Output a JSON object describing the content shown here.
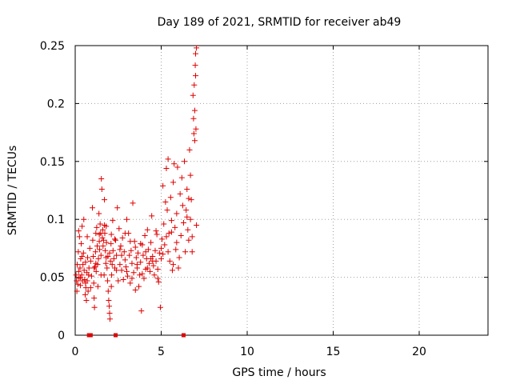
{
  "chart_data": {
    "type": "scatter",
    "title": "Day 189 of 2021, SRMTID for receiver ab49",
    "xlabel": "GPS time / hours",
    "ylabel": "SRMTID / TECUs",
    "xlim": [
      0,
      24
    ],
    "ylim": [
      0,
      0.25
    ],
    "xticks": [
      0,
      5,
      10,
      15,
      20
    ],
    "xtick_labels": [
      "0",
      "5",
      "10",
      "15",
      "20"
    ],
    "yticks": [
      0,
      0.05,
      0.1,
      0.15,
      0.2,
      0.25
    ],
    "ytick_labels": [
      "0",
      "0.05",
      "0.1",
      "0.15",
      "0.2",
      "0.25"
    ],
    "grid": true,
    "series": [
      {
        "name": "SRMTID",
        "color": "#e00000",
        "marker": "+",
        "points": [
          [
            0.05,
            0.052
          ],
          [
            0.08,
            0.047
          ],
          [
            0.12,
            0.061
          ],
          [
            0.15,
            0.044
          ],
          [
            0.18,
            0.072
          ],
          [
            0.2,
            0.055
          ],
          [
            0.22,
            0.049
          ],
          [
            0.25,
            0.085
          ],
          [
            0.28,
            0.058
          ],
          [
            0.3,
            0.043
          ],
          [
            0.32,
            0.066
          ],
          [
            0.35,
            0.079
          ],
          [
            0.38,
            0.052
          ],
          [
            0.4,
            0.094
          ],
          [
            0.42,
            0.047
          ],
          [
            0.45,
            0.061
          ],
          [
            0.48,
            0.071
          ],
          [
            0.5,
            0.1
          ],
          [
            0.52,
            0.056
          ],
          [
            0.55,
            0.048
          ],
          [
            0.58,
            0.035
          ],
          [
            0.6,
            0.063
          ],
          [
            0.62,
            0.041
          ],
          [
            0.65,
            0.03
          ],
          [
            0.68,
            0.054
          ],
          [
            0.7,
            0.047
          ],
          [
            0.72,
            0.067
          ],
          [
            0.75,
            0.038
          ],
          [
            0.78,
            0.052
          ],
          [
            0.8,
            0.058
          ],
          [
            0.85,
            0.075
          ],
          [
            0.9,
            0.064
          ],
          [
            0.95,
            0.051
          ],
          [
            1.0,
            0.11
          ],
          [
            1.02,
            0.082
          ],
          [
            1.05,
            0.068
          ],
          [
            1.08,
            0.045
          ],
          [
            1.1,
            0.032
          ],
          [
            1.12,
            0.024
          ],
          [
            1.15,
            0.059
          ],
          [
            1.18,
            0.072
          ],
          [
            1.2,
            0.088
          ],
          [
            1.22,
            0.055
          ],
          [
            1.25,
            0.093
          ],
          [
            1.28,
            0.077
          ],
          [
            1.3,
            0.061
          ],
          [
            1.32,
            0.042
          ],
          [
            1.35,
            0.066
          ],
          [
            1.38,
            0.105
          ],
          [
            1.4,
            0.081
          ],
          [
            1.42,
            0.074
          ],
          [
            1.45,
            0.096
          ],
          [
            1.48,
            0.088
          ],
          [
            1.5,
            0.069
          ],
          [
            1.52,
            0.135
          ],
          [
            1.55,
            0.126
          ],
          [
            1.58,
            0.084
          ],
          [
            1.6,
            0.091
          ],
          [
            1.62,
            0.077
          ],
          [
            1.65,
            0.082
          ],
          [
            1.68,
            0.052
          ],
          [
            1.7,
            0.117
          ],
          [
            1.72,
            0.088
          ],
          [
            1.75,
            0.073
          ],
          [
            1.78,
            0.062
          ],
          [
            1.8,
            0.094
          ],
          [
            1.82,
            0.08
          ],
          [
            1.85,
            0.058
          ],
          [
            1.88,
            0.047
          ],
          [
            1.9,
            0.068
          ],
          [
            1.92,
            0.038
          ],
          [
            1.95,
            0.03
          ],
          [
            1.98,
            0.025
          ],
          [
            2.0,
            0.019
          ],
          [
            2.02,
            0.014
          ],
          [
            2.05,
            0.064
          ],
          [
            2.08,
            0.079
          ],
          [
            2.1,
            0.087
          ],
          [
            2.12,
            0.052
          ],
          [
            2.15,
            0.061
          ],
          [
            2.18,
            0.099
          ],
          [
            2.2,
            0.073
          ],
          [
            2.25,
            0.066
          ],
          [
            2.3,
            0.058
          ],
          [
            2.35,
            0.082
          ],
          [
            2.4,
            0.069
          ],
          [
            2.45,
            0.11
          ],
          [
            2.5,
            0.047
          ],
          [
            2.55,
            0.092
          ],
          [
            2.6,
            0.061
          ],
          [
            2.65,
            0.077
          ],
          [
            2.7,
            0.056
          ],
          [
            2.75,
            0.084
          ],
          [
            2.8,
            0.048
          ],
          [
            2.85,
            0.072
          ],
          [
            2.9,
            0.065
          ],
          [
            2.95,
            0.059
          ],
          [
            3.0,
            0.1
          ],
          [
            3.05,
            0.051
          ],
          [
            3.1,
            0.088
          ],
          [
            3.15,
            0.069
          ],
          [
            3.2,
            0.045
          ],
          [
            3.25,
            0.073
          ],
          [
            3.3,
            0.062
          ],
          [
            3.35,
            0.114
          ],
          [
            3.4,
            0.054
          ],
          [
            3.45,
            0.081
          ],
          [
            3.5,
            0.039
          ],
          [
            3.55,
            0.067
          ],
          [
            3.6,
            0.058
          ],
          [
            3.65,
            0.071
          ],
          [
            3.7,
            0.042
          ],
          [
            3.75,
            0.052
          ],
          [
            3.8,
            0.063
          ],
          [
            3.85,
            0.021
          ],
          [
            3.9,
            0.078
          ],
          [
            3.95,
            0.069
          ],
          [
            4.0,
            0.049
          ],
          [
            4.05,
            0.086
          ],
          [
            4.1,
            0.057
          ],
          [
            4.15,
            0.066
          ],
          [
            4.2,
            0.091
          ],
          [
            4.25,
            0.074
          ],
          [
            4.3,
            0.062
          ],
          [
            4.35,
            0.055
          ],
          [
            4.4,
            0.08
          ],
          [
            4.45,
            0.103
          ],
          [
            4.5,
            0.068
          ],
          [
            4.55,
            0.06
          ],
          [
            4.6,
            0.052
          ],
          [
            4.65,
            0.073
          ],
          [
            4.7,
            0.064
          ],
          [
            4.75,
            0.087
          ],
          [
            4.8,
            0.057
          ],
          [
            4.85,
            0.046
          ],
          [
            4.9,
            0.071
          ],
          [
            4.95,
            0.024
          ],
          [
            5.0,
            0.066
          ],
          [
            5.05,
            0.083
          ],
          [
            5.1,
            0.129
          ],
          [
            5.15,
            0.096
          ],
          [
            5.2,
            0.078
          ],
          [
            5.25,
            0.115
          ],
          [
            5.3,
            0.144
          ],
          [
            5.35,
            0.108
          ],
          [
            5.4,
            0.152
          ],
          [
            5.45,
            0.088
          ],
          [
            5.5,
            0.064
          ],
          [
            5.55,
            0.119
          ],
          [
            5.6,
            0.099
          ],
          [
            5.65,
            0.056
          ],
          [
            5.7,
            0.132
          ],
          [
            5.75,
            0.148
          ],
          [
            5.8,
            0.093
          ],
          [
            5.85,
            0.074
          ],
          [
            5.9,
            0.105
          ],
          [
            5.95,
            0.145
          ],
          [
            6.0,
            0.058
          ],
          [
            6.05,
            0.067
          ],
          [
            6.1,
            0.122
          ],
          [
            6.15,
            0.086
          ],
          [
            6.2,
            0.136
          ],
          [
            6.25,
            0.112
          ],
          [
            6.3,
            0.097
          ],
          [
            6.35,
            0.15
          ],
          [
            6.4,
            0.072
          ],
          [
            6.45,
            0.108
          ],
          [
            6.5,
            0.126
          ],
          [
            6.55,
            0.091
          ],
          [
            6.6,
            0.082
          ],
          [
            6.65,
            0.16
          ],
          [
            6.7,
            0.138
          ],
          [
            6.75,
            0.117
          ],
          [
            6.8,
            0.085
          ],
          [
            6.85,
            0.207
          ],
          [
            6.9,
            0.174
          ],
          [
            6.95,
            0.194
          ],
          [
            7.0,
            0.224
          ],
          [
            7.0,
            0.243
          ],
          [
            7.05,
            0.248
          ],
          [
            6.98,
            0.233
          ],
          [
            6.92,
            0.216
          ],
          [
            6.88,
            0.187
          ],
          [
            7.02,
            0.178
          ],
          [
            6.95,
            0.168
          ],
          [
            6.8,
            0.072
          ],
          [
            7.05,
            0.095
          ],
          [
            6.7,
            0.1
          ],
          [
            6.6,
            0.118
          ],
          [
            6.5,
            0.102
          ],
          [
            0.1,
            0.038
          ],
          [
            0.3,
            0.05
          ],
          [
            0.6,
            0.045
          ],
          [
            0.9,
            0.041
          ],
          [
            1.2,
            0.062
          ],
          [
            1.5,
            0.052
          ],
          [
            1.8,
            0.067
          ],
          [
            2.1,
            0.042
          ],
          [
            2.4,
            0.056
          ],
          [
            2.7,
            0.069
          ],
          [
            3.0,
            0.055
          ],
          [
            3.3,
            0.049
          ],
          [
            3.6,
            0.061
          ],
          [
            3.9,
            0.053
          ],
          [
            4.2,
            0.058
          ],
          [
            4.5,
            0.064
          ],
          [
            4.8,
            0.049
          ],
          [
            5.1,
            0.07
          ],
          [
            5.4,
            0.072
          ],
          [
            5.7,
            0.061
          ],
          [
            0.2,
            0.09
          ],
          [
            0.4,
            0.068
          ],
          [
            0.7,
            0.085
          ],
          [
            1.1,
            0.058
          ],
          [
            1.4,
            0.087
          ],
          [
            1.7,
            0.095
          ],
          [
            2.0,
            0.071
          ],
          [
            2.3,
            0.083
          ],
          [
            2.6,
            0.074
          ],
          [
            2.9,
            0.088
          ],
          [
            3.2,
            0.081
          ],
          [
            3.5,
            0.076
          ],
          [
            3.8,
            0.079
          ],
          [
            4.1,
            0.072
          ],
          [
            4.4,
            0.066
          ],
          [
            4.7,
            0.09
          ],
          [
            5.0,
            0.075
          ],
          [
            5.3,
            0.085
          ],
          [
            5.6,
            0.089
          ],
          [
            5.9,
            0.08
          ]
        ]
      },
      {
        "name": "zero-values",
        "color": "#e00000",
        "marker": "square",
        "points": [
          [
            0.8,
            0
          ],
          [
            0.9,
            0
          ],
          [
            2.35,
            0
          ],
          [
            6.3,
            0
          ]
        ]
      }
    ]
  }
}
